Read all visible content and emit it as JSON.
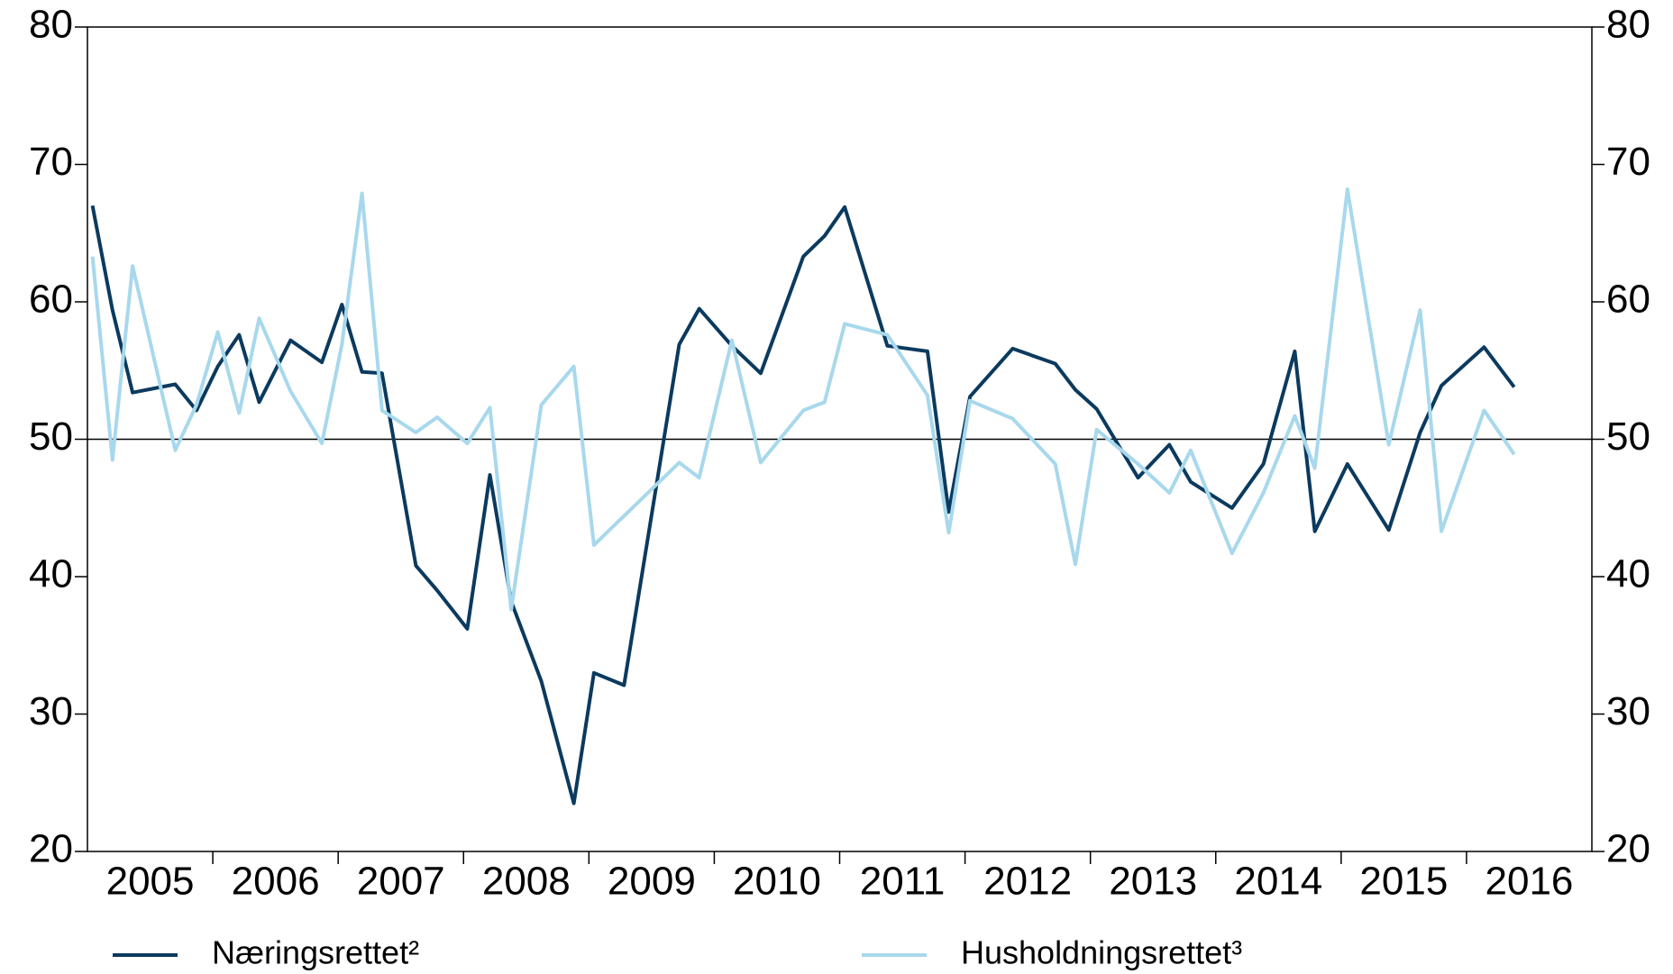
{
  "chart_data": {
    "type": "line",
    "ylim": [
      20,
      80
    ],
    "yticks": [
      20,
      30,
      40,
      50,
      60,
      70,
      80
    ],
    "y2lim": [
      20,
      80
    ],
    "y2ticks": [
      20,
      30,
      40,
      50,
      60,
      70,
      80
    ],
    "reference_line": 50,
    "xlim": [
      2005,
      2017
    ],
    "xtick_marks": [
      2006,
      2007,
      2008,
      2009,
      2010,
      2011,
      2012,
      2013,
      2014,
      2015,
      2016
    ],
    "xticks": [
      {
        "value": 2005.5,
        "label": "2005"
      },
      {
        "value": 2006.5,
        "label": "2006"
      },
      {
        "value": 2007.5,
        "label": "2007"
      },
      {
        "value": 2008.5,
        "label": "2008"
      },
      {
        "value": 2009.5,
        "label": "2009"
      },
      {
        "value": 2010.5,
        "label": "2010"
      },
      {
        "value": 2011.5,
        "label": "2011"
      },
      {
        "value": 2012.5,
        "label": "2012"
      },
      {
        "value": 2013.5,
        "label": "2013"
      },
      {
        "value": 2014.5,
        "label": "2014"
      },
      {
        "value": 2015.5,
        "label": "2015"
      },
      {
        "value": 2016.5,
        "label": "2016"
      }
    ],
    "series": [
      {
        "name": "Næringsrettet²",
        "color": "#0b3a5f",
        "x": [
          2005.04,
          2005.2,
          2005.36,
          2005.7,
          2005.87,
          2006.04,
          2006.21,
          2006.37,
          2006.62,
          2006.87,
          2007.03,
          2007.19,
          2007.35,
          2007.62,
          2007.79,
          2008.03,
          2008.21,
          2008.38,
          2008.62,
          2008.88,
          2009.04,
          2009.28,
          2009.72,
          2009.88,
          2010.14,
          2010.37,
          2010.71,
          2010.88,
          2011.04,
          2011.38,
          2011.7,
          2011.87,
          2012.04,
          2012.38,
          2012.72,
          2012.88,
          2013.05,
          2013.38,
          2013.63,
          2013.8,
          2014.13,
          2014.38,
          2014.63,
          2014.79,
          2015.05,
          2015.38,
          2015.63,
          2015.8,
          2016.14,
          2016.38
        ],
        "values": [
          67,
          59.4,
          53.4,
          54,
          52.1,
          55.3,
          57.6,
          52.7,
          57.2,
          55.6,
          59.8,
          54.9,
          54.8,
          40.8,
          39,
          36.2,
          47.4,
          38.2,
          32.4,
          23.5,
          33,
          32.1,
          56.9,
          59.5,
          56.8,
          54.8,
          63.3,
          64.8,
          66.9,
          56.8,
          56.4,
          44.7,
          53.1,
          56.6,
          55.5,
          53.6,
          52.2,
          47.2,
          49.6,
          46.9,
          45,
          48.2,
          56.4,
          43.3,
          48.2,
          43.4,
          50.5,
          53.9,
          56.7,
          53.8
        ]
      },
      {
        "name": "Husholdningsrettet³",
        "color": "#a8d8ec",
        "x": [
          2005.04,
          2005.2,
          2005.36,
          2005.7,
          2005.87,
          2006.04,
          2006.21,
          2006.37,
          2006.62,
          2006.87,
          2007.03,
          2007.19,
          2007.35,
          2007.62,
          2007.79,
          2008.03,
          2008.21,
          2008.38,
          2008.62,
          2008.88,
          2009.04,
          2009.72,
          2009.88,
          2010.14,
          2010.37,
          2010.71,
          2010.88,
          2011.04,
          2011.38,
          2011.7,
          2011.87,
          2012.04,
          2012.38,
          2012.72,
          2012.88,
          2013.05,
          2013.38,
          2013.63,
          2013.8,
          2014.13,
          2014.38,
          2014.63,
          2014.79,
          2015.05,
          2015.38,
          2015.63,
          2015.8,
          2016.14,
          2016.38
        ],
        "values": [
          63.3,
          48.5,
          62.6,
          49.2,
          52.5,
          57.8,
          51.9,
          58.8,
          53.5,
          49.7,
          56.9,
          67.9,
          52.1,
          50.5,
          51.6,
          49.7,
          52.3,
          37.6,
          52.5,
          55.3,
          42.3,
          48.3,
          47.2,
          57.2,
          48.3,
          52.1,
          52.7,
          58.4,
          57.6,
          53.2,
          43.2,
          52.8,
          51.5,
          48.2,
          40.9,
          50.7,
          48.2,
          46.1,
          49.2,
          41.7,
          46.1,
          51.7,
          47.9,
          68.2,
          49.6,
          59.4,
          43.3,
          52.1,
          48.9
        ]
      }
    ]
  }
}
